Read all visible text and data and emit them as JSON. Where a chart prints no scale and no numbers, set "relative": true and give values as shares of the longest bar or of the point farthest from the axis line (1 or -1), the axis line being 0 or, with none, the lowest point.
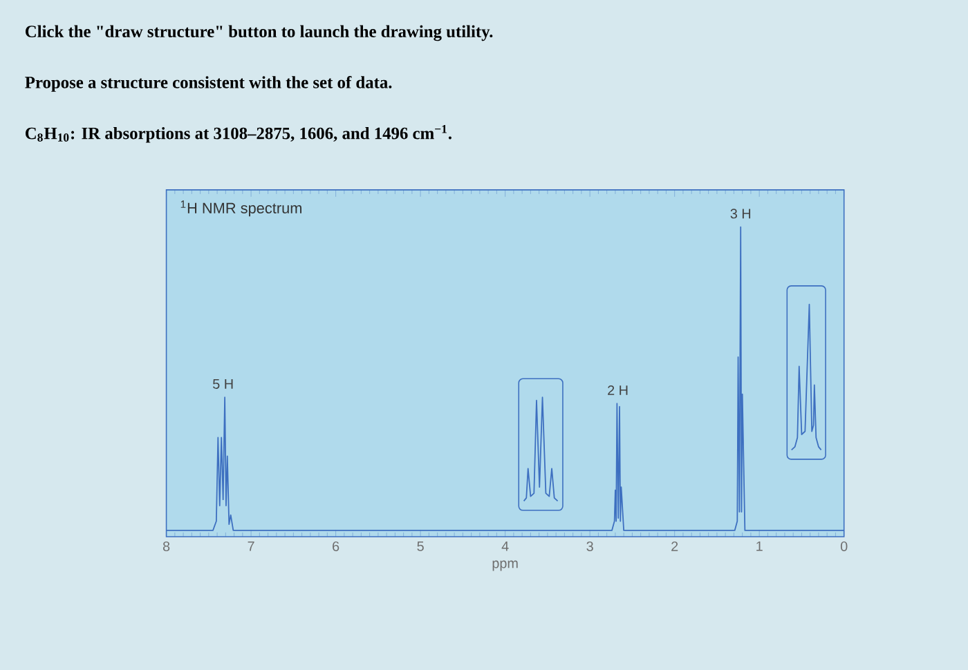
{
  "chart_data": {
    "type": "line",
    "relative": true,
    "title": "$^{1}$H NMR spectrum",
    "xlabel": "ppm",
    "xlim": [
      8,
      0
    ],
    "xticks": [
      8,
      7,
      6,
      5,
      4,
      3,
      2,
      1,
      0
    ],
    "series": [
      {
        "color": "#3d6fc0",
        "x": [
          8,
          7.45,
          7.41,
          7.39,
          7.37,
          7.35,
          7.33,
          7.31,
          7.295,
          7.28,
          7.26,
          7.24,
          7.21,
          2.74,
          2.71,
          2.7,
          2.69,
          2.68,
          2.665,
          2.65,
          2.64,
          2.63,
          2.6,
          1.29,
          1.26,
          1.25,
          1.235,
          1.22,
          1.21,
          1.2,
          1.17,
          0
        ],
        "values": [
          0.02,
          0.02,
          0.05,
          0.32,
          0.1,
          0.32,
          0.12,
          0.45,
          0.1,
          0.26,
          0.04,
          0.07,
          0.02,
          0.02,
          0.05,
          0.15,
          0.05,
          0.43,
          0.06,
          0.42,
          0.05,
          0.16,
          0.02,
          0.02,
          0.05,
          0.58,
          0.08,
          1,
          0.08,
          0.46,
          0.02,
          0.02
        ]
      },
      {
        "color": "#3d6fc0",
        "x": [
          3.78,
          3.75,
          3.73,
          3.7,
          3.66,
          3.63,
          3.595,
          3.56,
          3.52,
          3.48,
          3.45,
          3.42,
          3.38
        ],
        "values": [
          0.115,
          0.125,
          0.22,
          0.13,
          0.14,
          0.44,
          0.16,
          0.45,
          0.14,
          0.13,
          0.22,
          0.125,
          0.115
        ]
      },
      {
        "color": "#3d6fc0",
        "x": [
          0.62,
          0.58,
          0.55,
          0.53,
          0.5,
          0.46,
          0.41,
          0.38,
          0.36,
          0.35,
          0.33,
          0.3,
          0.27
        ],
        "values": [
          0.28,
          0.29,
          0.32,
          0.55,
          0.33,
          0.34,
          0.75,
          0.34,
          0.36,
          0.49,
          0.32,
          0.29,
          0.28
        ]
      }
    ],
    "annotations": [
      "Click the \"draw structure\" button to launch the drawing utility.",
      "Propose a structure consistent with the set of data.",
      "C$_{8}$H$_{10}$: IR absorptions at 3108–2875, 1606, and 1496 cm$^{−1}$.",
      {
        "text": "5 H",
        "x": 7.33,
        "y": 0.45
      },
      {
        "text": "2 H",
        "x": 2.67,
        "y": 0.43
      },
      {
        "text": "3 H",
        "x": 1.22,
        "y": 1
      }
    ]
  }
}
